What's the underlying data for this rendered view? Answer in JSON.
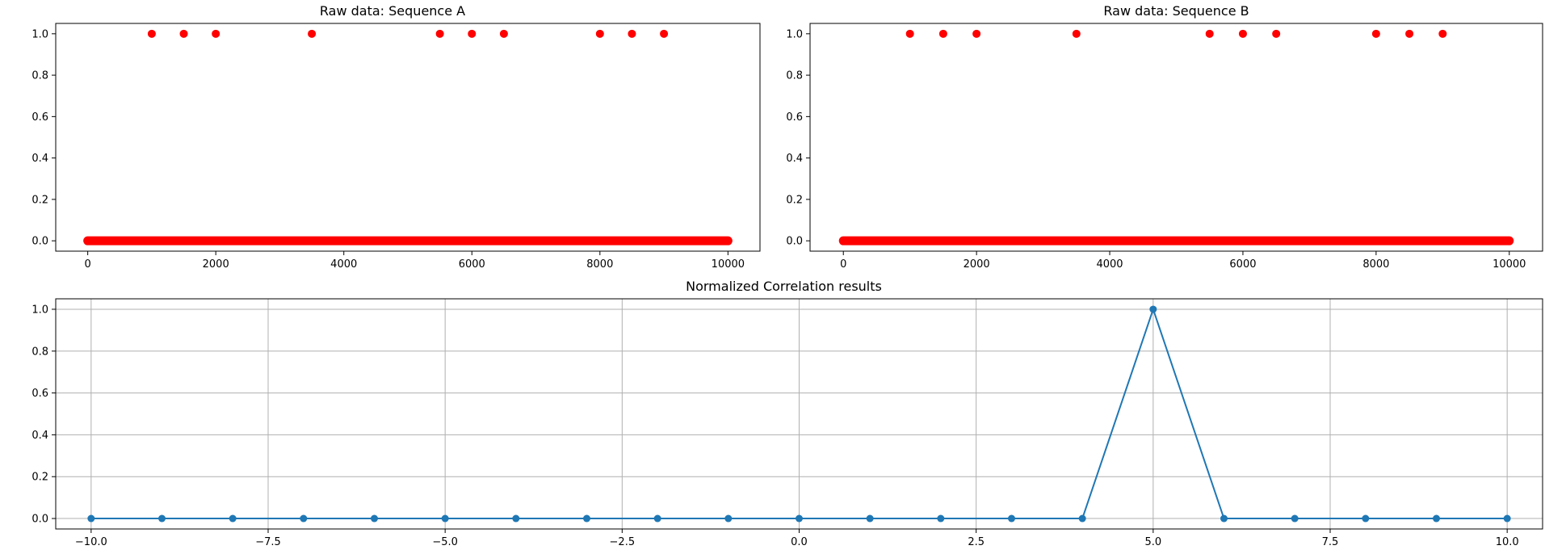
{
  "chart_data": [
    {
      "type": "scatter",
      "title": "Raw data: Sequence A",
      "xlim": [
        -500,
        10500
      ],
      "ylim": [
        -0.05,
        1.05
      ],
      "xticks": [
        0,
        2000,
        4000,
        6000,
        8000,
        10000
      ],
      "xtick_labels": [
        "0",
        "2000",
        "4000",
        "6000",
        "8000",
        "10000"
      ],
      "yticks": [
        0.0,
        0.2,
        0.4,
        0.6,
        0.8,
        1.0
      ],
      "ytick_labels": [
        "0.0",
        "0.2",
        "0.4",
        "0.6",
        "0.8",
        "1.0"
      ],
      "grid": false,
      "marker_color": "#ff0000",
      "series": [
        {
          "baseline": {
            "value": 0,
            "x_from": 0,
            "x_to": 10000
          },
          "points": [
            {
              "x": 1000,
              "y": 1
            },
            {
              "x": 1500,
              "y": 1
            },
            {
              "x": 2000,
              "y": 1
            },
            {
              "x": 3500,
              "y": 1
            },
            {
              "x": 5500,
              "y": 1
            },
            {
              "x": 6000,
              "y": 1
            },
            {
              "x": 6500,
              "y": 1
            },
            {
              "x": 8000,
              "y": 1
            },
            {
              "x": 8500,
              "y": 1
            },
            {
              "x": 9000,
              "y": 1
            }
          ]
        }
      ]
    },
    {
      "type": "scatter",
      "title": "Raw data: Sequence B",
      "xlim": [
        -500,
        10500
      ],
      "ylim": [
        -0.05,
        1.05
      ],
      "xticks": [
        0,
        2000,
        4000,
        6000,
        8000,
        10000
      ],
      "xtick_labels": [
        "0",
        "2000",
        "4000",
        "6000",
        "8000",
        "10000"
      ],
      "yticks": [
        0.0,
        0.2,
        0.4,
        0.6,
        0.8,
        1.0
      ],
      "ytick_labels": [
        "0.0",
        "0.2",
        "0.4",
        "0.6",
        "0.8",
        "1.0"
      ],
      "grid": false,
      "marker_color": "#ff0000",
      "series": [
        {
          "baseline": {
            "value": 0,
            "x_from": 0,
            "x_to": 10000
          },
          "points": [
            {
              "x": 1000,
              "y": 1
            },
            {
              "x": 1500,
              "y": 1
            },
            {
              "x": 2000,
              "y": 1
            },
            {
              "x": 3500,
              "y": 1
            },
            {
              "x": 5500,
              "y": 1
            },
            {
              "x": 6000,
              "y": 1
            },
            {
              "x": 6500,
              "y": 1
            },
            {
              "x": 8000,
              "y": 1
            },
            {
              "x": 8500,
              "y": 1
            },
            {
              "x": 9000,
              "y": 1
            }
          ]
        }
      ]
    },
    {
      "type": "line",
      "title": "Normalized Correlation results",
      "xlim": [
        -10.5,
        10.5
      ],
      "ylim": [
        -0.05,
        1.05
      ],
      "xticks": [
        -10.0,
        -7.5,
        -5.0,
        -2.5,
        0.0,
        2.5,
        5.0,
        7.5,
        10.0
      ],
      "xtick_labels": [
        "−10.0",
        "−7.5",
        "−5.0",
        "−2.5",
        "0.0",
        "2.5",
        "5.0",
        "7.5",
        "10.0"
      ],
      "yticks": [
        0.0,
        0.2,
        0.4,
        0.6,
        0.8,
        1.0
      ],
      "ytick_labels": [
        "0.0",
        "0.2",
        "0.4",
        "0.6",
        "0.8",
        "1.0"
      ],
      "grid": true,
      "line_color": "#1f77b4",
      "series": [
        {
          "x": [
            -10,
            -9,
            -8,
            -7,
            -6,
            -5,
            -4,
            -3,
            -2,
            -1,
            0,
            1,
            2,
            3,
            4,
            5,
            6,
            7,
            8,
            9,
            10
          ],
          "values": [
            0,
            0,
            0,
            0,
            0,
            0,
            0,
            0,
            0,
            0,
            0,
            0,
            0,
            0,
            0,
            1,
            0,
            0,
            0,
            0,
            0
          ]
        }
      ]
    }
  ]
}
